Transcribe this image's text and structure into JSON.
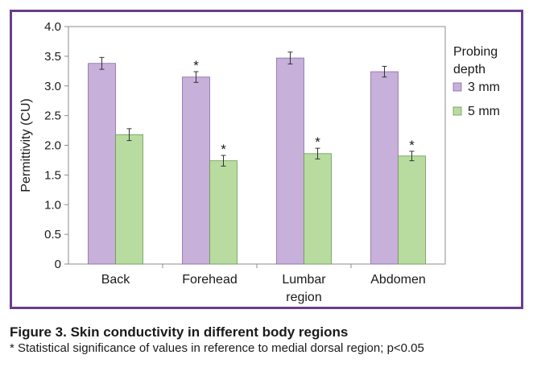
{
  "chart_data": {
    "type": "bar",
    "categories": [
      [
        "Back"
      ],
      [
        "Forehead"
      ],
      [
        "Lumbar",
        "region"
      ],
      [
        "Abdomen"
      ]
    ],
    "ylabel": "Permittivity (CU)",
    "ylim": [
      0,
      4.0
    ],
    "yticks": [
      "0",
      "0.5",
      "1.0",
      "1.5",
      "2.0",
      "2.5",
      "3.0",
      "3.5",
      "4.0"
    ],
    "grid": false,
    "legend": {
      "title": [
        "Probing",
        "depth"
      ],
      "position": "right"
    },
    "series": [
      {
        "name": "3 mm",
        "color": "#c7b0d9",
        "stroke": "#8a6aa6",
        "values": [
          3.38,
          3.15,
          3.47,
          3.24
        ],
        "errors": [
          0.1,
          0.09,
          0.1,
          0.09
        ],
        "significance": [
          "",
          "*",
          "",
          ""
        ]
      },
      {
        "name": "5 mm",
        "color": "#b8dca0",
        "stroke": "#6a9a50",
        "values": [
          2.18,
          1.74,
          1.86,
          1.82
        ],
        "errors": [
          0.1,
          0.09,
          0.09,
          0.08
        ],
        "significance": [
          "",
          "*",
          "*",
          "*"
        ]
      }
    ]
  },
  "caption": {
    "title": "Figure 3. Skin conductivity in different body regions",
    "note": "* Statistical significance of values in reference to medial dorsal region; p<0.05"
  }
}
